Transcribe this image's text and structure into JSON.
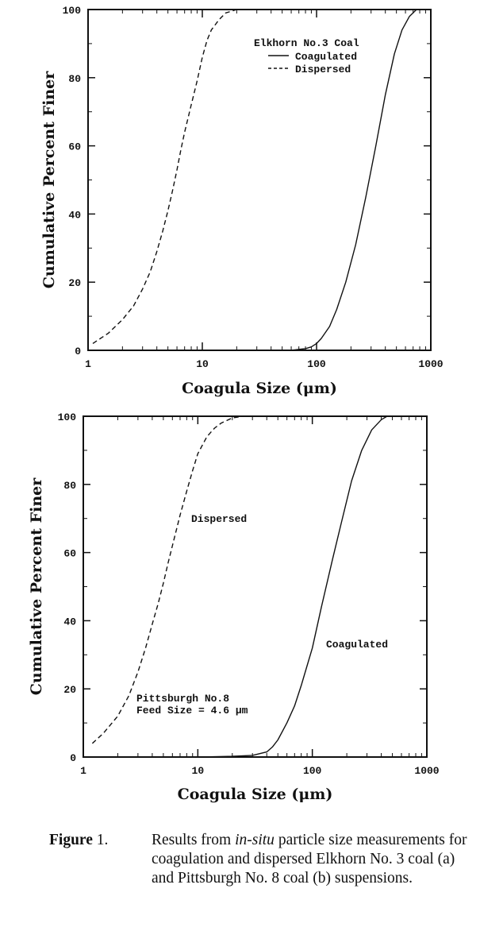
{
  "chart_data": [
    {
      "type": "line",
      "xscale": "log",
      "xlim": [
        1,
        1000
      ],
      "ylim": [
        0,
        100
      ],
      "grid": false,
      "xlabel": "Coagula Size (μm)",
      "ylabel": "Cumulative Percent Finer",
      "x_ticks": [
        "1",
        "10",
        "100",
        "1000"
      ],
      "y_ticks": [
        "0",
        "20",
        "40",
        "60",
        "80",
        "100"
      ],
      "legend_title": "Elkhorn No.3 Coal",
      "legend_placement": "top-right",
      "series": [
        {
          "name": "Coagulated",
          "style": "solid",
          "x": [
            60,
            80,
            90,
            100,
            110,
            130,
            150,
            180,
            220,
            270,
            330,
            400,
            480,
            560,
            650,
            750
          ],
          "y": [
            0,
            0.5,
            1,
            2,
            3.5,
            7,
            12,
            20,
            31,
            45,
            60,
            75,
            87,
            94,
            98,
            100
          ]
        },
        {
          "name": "Dispersed",
          "style": "dashed",
          "x": [
            1.1,
            1.5,
            2,
            2.5,
            3,
            3.5,
            4,
            4.5,
            5,
            5.5,
            6,
            6.5,
            7,
            8,
            9,
            10,
            11,
            12,
            14,
            16,
            18,
            20
          ],
          "y": [
            2,
            5,
            9,
            13,
            18,
            23,
            29,
            35,
            41,
            47,
            53,
            59,
            64,
            72,
            79,
            86,
            91,
            94,
            97,
            99,
            99.5,
            100
          ]
        }
      ]
    },
    {
      "type": "line",
      "xscale": "log",
      "xlim": [
        1,
        1000
      ],
      "ylim": [
        0,
        100
      ],
      "grid": false,
      "xlabel": "Coagula Size (μm)",
      "ylabel": "Cumulative Percent Finer",
      "x_ticks": [
        "1",
        "10",
        "100",
        "1000"
      ],
      "y_ticks": [
        "0",
        "20",
        "40",
        "60",
        "80",
        "100"
      ],
      "annotations": [
        "Pittsburgh No.8",
        "Feed Size = 4.6 μm"
      ],
      "series": [
        {
          "name": "Coagulated",
          "style": "solid",
          "x": [
            10,
            20,
            30,
            40,
            45,
            50,
            60,
            70,
            80,
            100,
            120,
            150,
            180,
            220,
            270,
            330,
            400,
            450
          ],
          "y": [
            0,
            0.2,
            0.5,
            1.5,
            3,
            5,
            10,
            15,
            21,
            32,
            44,
            58,
            69,
            81,
            90,
            96,
            99,
            100
          ]
        },
        {
          "name": "Dispersed",
          "style": "dashed",
          "x": [
            1.2,
            1.5,
            2,
            2.5,
            3,
            3.5,
            4,
            4.5,
            5,
            5.5,
            6,
            7,
            8,
            9,
            10,
            12,
            14,
            16,
            20,
            25
          ],
          "y": [
            4,
            7,
            12,
            18,
            25,
            32,
            39,
            45,
            51,
            57,
            62,
            71,
            78,
            84,
            89,
            94,
            96.5,
            98,
            99.5,
            100
          ]
        }
      ]
    }
  ],
  "caption": {
    "label": "Figure",
    "number": " 1.",
    "text_before_italic": "Results from ",
    "italic": "in-situ",
    "text_after_italic": " particle size measurements for coagulation and dispersed Elkhorn No. 3 coal (a) and Pittsburgh No. 8 coal (b) suspensions."
  }
}
